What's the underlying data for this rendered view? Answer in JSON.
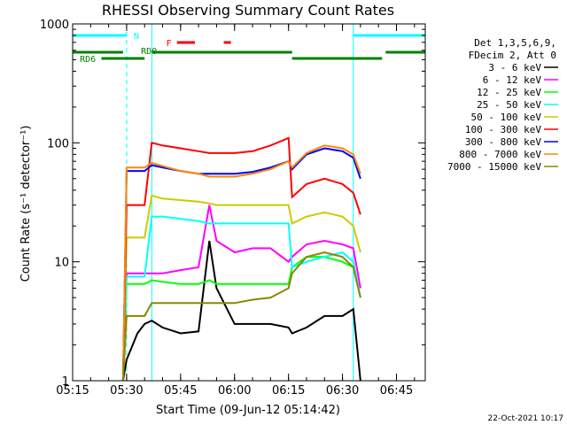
{
  "chart_data": {
    "type": "line",
    "title": "RHESSI Observing Summary Count Rates",
    "xlabel": "Start Time (09-Jun-12 05:14:42)",
    "ylabel": "Count Rate (s⁻¹ detector⁻¹)",
    "y_scale": "log",
    "ylim": [
      1,
      1000
    ],
    "xlim": [
      "05:15",
      "06:53"
    ],
    "x_ticks": [
      "05:15",
      "05:30",
      "05:45",
      "06:00",
      "06:15",
      "06:30",
      "06:45"
    ],
    "y_ticks": [
      "1",
      "10",
      "100",
      "1000"
    ],
    "legend_header": [
      "Det 1,3,5,6,9,",
      "FDecim 2, Att 0"
    ],
    "legend_position": "right",
    "timestamp": "22-Oct-2021 10:17",
    "flag_labels": {
      "night": "N",
      "saa": "F",
      "rd0": "RD0",
      "rd6": "RD6"
    },
    "vertical_markers": [
      "05:15",
      "05:30",
      "05:37",
      "06:33",
      "06:53"
    ],
    "x": [
      "05:29",
      "05:30",
      "05:33",
      "05:35",
      "05:37",
      "05:40",
      "05:45",
      "05:50",
      "05:53",
      "05:55",
      "06:00",
      "06:05",
      "06:10",
      "06:15",
      "06:16",
      "06:20",
      "06:25",
      "06:30",
      "06:33",
      "06:35"
    ],
    "series": [
      {
        "name": "3 - 6 keV",
        "color": "#000000",
        "values": [
          1,
          1.5,
          2.5,
          3,
          3.2,
          2.8,
          2.5,
          2.6,
          15,
          6,
          3,
          3,
          3,
          2.8,
          2.5,
          2.8,
          3.5,
          3.5,
          4,
          1
        ]
      },
      {
        "name": "6 - 12 keV",
        "color": "#ff00ff",
        "values": [
          1,
          8,
          8,
          8,
          8,
          8,
          8.5,
          9,
          30,
          15,
          12,
          13,
          13,
          10,
          11,
          14,
          15,
          14,
          13,
          6
        ]
      },
      {
        "name": "12 - 25 keV",
        "color": "#00ff00",
        "values": [
          1,
          6.5,
          6.5,
          6.5,
          7,
          6.8,
          6.5,
          6.5,
          7,
          6.5,
          6.5,
          6.5,
          6.5,
          6.5,
          9,
          11,
          11,
          10,
          9,
          5
        ]
      },
      {
        "name": "25 - 50 keV",
        "color": "#00ffff",
        "values": [
          1,
          7.5,
          7.5,
          7.5,
          24,
          24,
          23,
          22,
          21,
          21,
          21,
          21,
          21,
          21,
          9,
          10,
          11,
          12,
          10,
          5
        ]
      },
      {
        "name": "50 - 100 keV",
        "color": "#cccc00",
        "values": [
          1,
          16,
          16,
          16,
          36,
          34,
          33,
          32,
          31,
          30,
          30,
          30,
          30,
          30,
          21,
          24,
          26,
          24,
          20,
          12
        ]
      },
      {
        "name": "100 - 300 keV",
        "color": "#ff0000",
        "values": [
          1,
          30,
          30,
          30,
          100,
          95,
          90,
          85,
          82,
          82,
          82,
          85,
          95,
          110,
          35,
          45,
          50,
          45,
          38,
          25
        ]
      },
      {
        "name": "300 - 800 keV",
        "color": "#0000ff",
        "values": [
          1,
          58,
          58,
          58,
          65,
          62,
          58,
          55,
          55,
          55,
          55,
          57,
          62,
          70,
          60,
          80,
          90,
          85,
          75,
          50
        ]
      },
      {
        "name": "800 - 7000 keV",
        "color": "#ff8800",
        "values": [
          1,
          62,
          62,
          62,
          68,
          64,
          58,
          55,
          52,
          52,
          52,
          55,
          60,
          70,
          62,
          82,
          95,
          90,
          80,
          55
        ]
      },
      {
        "name": "7000 - 15000 keV",
        "color": "#888800",
        "values": [
          1,
          3.5,
          3.5,
          3.5,
          4.5,
          4.5,
          4.5,
          4.5,
          4.5,
          4.5,
          4.5,
          4.8,
          5,
          6,
          8,
          11,
          12,
          11,
          9,
          5
        ]
      }
    ],
    "colors": {
      "night": "#00ffff",
      "saa": "#ff0000",
      "rd": "#008000",
      "frame": "#000000"
    }
  }
}
